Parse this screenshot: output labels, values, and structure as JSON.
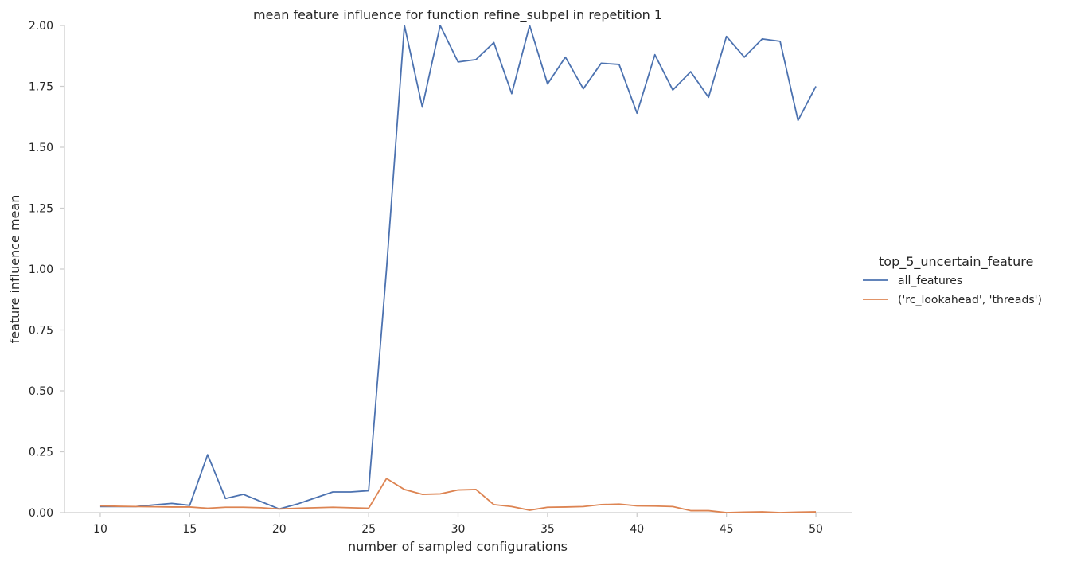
{
  "chart_data": {
    "type": "line",
    "title": "mean feature influence for function refine_subpel in repetition 1",
    "xlabel": "number of sampled configurations",
    "ylabel": "feature influence mean",
    "xlim": [
      8,
      52
    ],
    "ylim": [
      0,
      2.0
    ],
    "xticks": [
      10,
      15,
      20,
      25,
      30,
      35,
      40,
      45,
      50
    ],
    "yticks": [
      "0.00",
      "0.25",
      "0.50",
      "0.75",
      "1.00",
      "1.25",
      "1.50",
      "1.75",
      "2.00"
    ],
    "grid": false,
    "legend_title": "top_5_uncertain_feature",
    "legend_position": "right",
    "x": [
      10,
      11,
      12,
      13,
      14,
      15,
      16,
      17,
      18,
      19,
      20,
      21,
      22,
      23,
      24,
      25,
      26,
      27,
      28,
      29,
      30,
      31,
      32,
      33,
      34,
      35,
      36,
      37,
      38,
      39,
      40,
      41,
      42,
      43,
      44,
      45,
      46,
      47,
      48,
      49,
      50
    ],
    "series": [
      {
        "name": "all_features",
        "color": "#4c72b0",
        "values": [
          0.025,
          0.025,
          0.025,
          0.032,
          0.038,
          0.03,
          0.238,
          0.058,
          0.075,
          0.045,
          0.015,
          0.035,
          0.06,
          0.085,
          0.085,
          0.09,
          1.0,
          2.0,
          1.665,
          2.03,
          1.85,
          1.86,
          1.93,
          1.72,
          2.05,
          1.76,
          1.87,
          1.74,
          1.845,
          1.84,
          1.64,
          1.88,
          1.735,
          1.81,
          1.705,
          1.955,
          1.87,
          1.945,
          1.935,
          1.61,
          1.75
        ]
      },
      {
        "name": "('rc_lookahead', 'threads')",
        "color": "#dd8452",
        "values": [
          0.028,
          0.026,
          0.025,
          0.024,
          0.023,
          0.023,
          0.018,
          0.022,
          0.022,
          0.02,
          0.015,
          0.018,
          0.02,
          0.022,
          0.02,
          0.018,
          0.14,
          0.095,
          0.075,
          0.077,
          0.093,
          0.095,
          0.033,
          0.025,
          0.01,
          0.022,
          0.023,
          0.025,
          0.033,
          0.035,
          0.028,
          0.027,
          0.025,
          0.008,
          0.008,
          0.0,
          0.002,
          0.003,
          0.0,
          0.002,
          0.003
        ]
      }
    ]
  }
}
